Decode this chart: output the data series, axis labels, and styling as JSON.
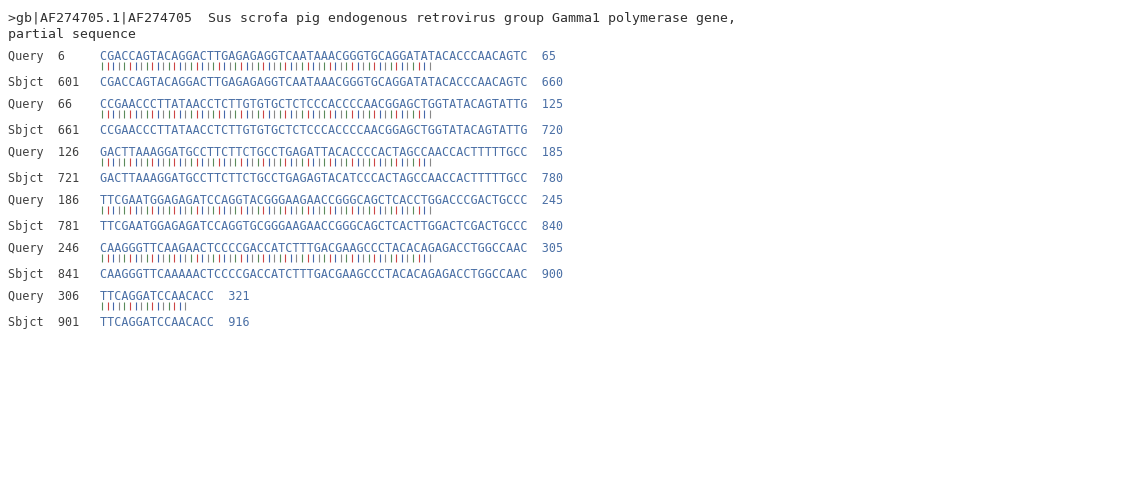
{
  "background_color": "#ffffff",
  "title_line1": ">gb|AF274705.1|AF274705  Sus scrofa pig endogenous retrovirus group Gamma1 polymerase gene,",
  "title_line2": "partial sequence",
  "title_fontsize": 9.5,
  "seq_fontsize": 8.5,
  "alignment_blocks": [
    {
      "query_start": "6",
      "query_seq": "CGACCAGTACAGGACTTGAGAGAGGTCAATAAACGGGTGCAGGATATACACCCAACAGTC",
      "query_end": "65",
      "sbjct_start": "601",
      "sbjct_seq": "CGACCAGTACAGGACTTGAGAGAGGTCAATAAACGGGTGCAGGATATACACCCAACAGTC",
      "sbjct_end": "660",
      "num_bars": 60
    },
    {
      "query_start": "66",
      "query_seq": "CCGAACCCTTATAACCTCTTGTGTGCTCTCCCACCCCAACGGAGCTGGTATACAGTATTG",
      "query_end": "125",
      "sbjct_start": "661",
      "sbjct_seq": "CCGAACCCTTATAACCTCTTGTGTGCTCTCCCACCCCAACGGAGCTGGTATACAGTATTG",
      "sbjct_end": "720",
      "num_bars": 60
    },
    {
      "query_start": "126",
      "query_seq": "GACTTAAAGGATGCCTTCTTCTGCCTGAGATTACACCCCACTAGCCAACCACTTTTTGCC",
      "query_end": "185",
      "sbjct_start": "721",
      "sbjct_seq": "GACTTAAAGGATGCCTTCTTCTGCCTGAGAGTACATCCCACTAGCCAACCACTTTTTGCC",
      "sbjct_end": "780",
      "num_bars": 60
    },
    {
      "query_start": "186",
      "query_seq": "TTCGAATGGAGAGATCCAGGTACGGGAAGAACCGGGCAGCTCACCTGGACCCGACTGCCC",
      "query_end": "245",
      "sbjct_start": "781",
      "sbjct_seq": "TTCGAATGGAGAGATCCAGGTGCGGGAAGAACCGGGCAGCTCACTTGGACTCGACTGCCC",
      "sbjct_end": "840",
      "num_bars": 60
    },
    {
      "query_start": "246",
      "query_seq": "CAAGGGTTCAAGAACTCCCCGACCATCTTTGACGAAGCCCTACACAGAGACCTGGCCAAC",
      "query_end": "305",
      "sbjct_start": "841",
      "sbjct_seq": "CAAGGGTTCAAAAACTCCCCGACCATCTTTGACGAAGCCCTACACAGAGACCTGGCCAAC",
      "sbjct_end": "900",
      "num_bars": 60
    },
    {
      "query_start": "306",
      "query_seq": "TTCAGGATCCAACACC",
      "query_end": "321",
      "sbjct_start": "901",
      "sbjct_seq": "TTCAGGATCCAACACC",
      "sbjct_end": "916",
      "num_bars": 16
    }
  ],
  "seq_color": "#4a6fa5",
  "label_color": "#404040",
  "bar_colors": [
    "#5a8a5a",
    "#cc4444",
    "#4466aa",
    "#888888"
  ],
  "title_color": "#303030"
}
